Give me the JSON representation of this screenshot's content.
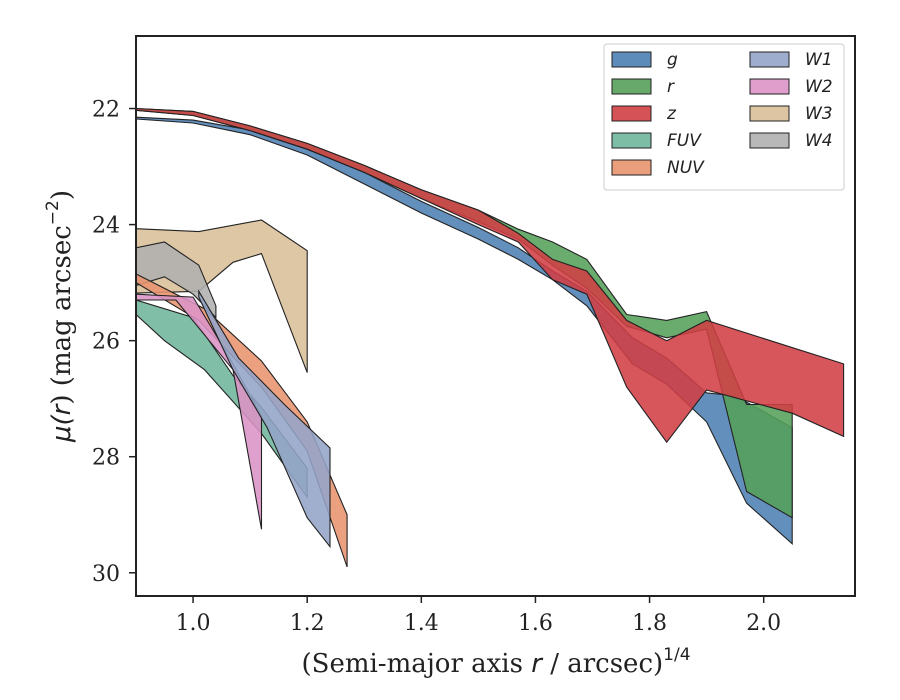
{
  "chart_data": {
    "type": "area",
    "xlabel_main": "(Semi-major axis ",
    "xlabel_var": "r",
    "xlabel_rest": " / arcsec)",
    "xlabel_sup": "1/4",
    "ylabel_main": "μ(",
    "ylabel_var": "r",
    "ylabel_rest": ") (mag arcsec",
    "ylabel_sup": "−2",
    "ylabel_end": ")",
    "xlim": [
      0.9,
      2.16
    ],
    "ylim": [
      30.4,
      20.75
    ],
    "y_inverted": true,
    "xticks": [
      1.0,
      1.2,
      1.4,
      1.6,
      1.8,
      2.0
    ],
    "xtick_labels": [
      "1.0",
      "1.2",
      "1.4",
      "1.6",
      "1.8",
      "2.0"
    ],
    "yticks": [
      22,
      24,
      26,
      28,
      30
    ],
    "ytick_labels": [
      "22",
      "24",
      "26",
      "28",
      "30"
    ],
    "grid": false,
    "legend_placement": "top-right",
    "legend_columns": 2,
    "series": [
      {
        "name": "W3",
        "color": "#d9bf99",
        "upper": [
          [
            0.9,
            24.07
          ],
          [
            1.01,
            24.12
          ],
          [
            1.12,
            23.92
          ],
          [
            1.2,
            24.45
          ]
        ],
        "lower": [
          [
            0.9,
            25.18
          ],
          [
            1.01,
            25.15
          ],
          [
            1.07,
            24.65
          ],
          [
            1.12,
            24.5
          ],
          [
            1.2,
            26.55
          ]
        ]
      },
      {
        "name": "W4",
        "color": "#b0b0b0",
        "upper": [
          [
            0.9,
            24.4
          ],
          [
            0.95,
            24.3
          ],
          [
            1.01,
            24.7
          ],
          [
            1.04,
            25.4
          ]
        ],
        "lower": [
          [
            0.9,
            25.05
          ],
          [
            0.95,
            24.9
          ],
          [
            1.0,
            25.2
          ],
          [
            1.04,
            25.6
          ]
        ]
      },
      {
        "name": "FUV",
        "color": "#6fb59b",
        "upper": [
          [
            0.9,
            25.3
          ],
          [
            1.0,
            25.6
          ],
          [
            1.07,
            26.6
          ],
          [
            1.12,
            27.15
          ],
          [
            1.2,
            28.2
          ]
        ],
        "lower": [
          [
            0.9,
            25.55
          ],
          [
            0.95,
            26.0
          ],
          [
            1.02,
            26.5
          ],
          [
            1.12,
            27.6
          ],
          [
            1.2,
            28.7
          ]
        ]
      },
      {
        "name": "NUV",
        "color": "#e8946e",
        "upper": [
          [
            0.9,
            24.85
          ],
          [
            1.02,
            25.45
          ],
          [
            1.12,
            26.35
          ],
          [
            1.2,
            27.4
          ],
          [
            1.27,
            29.0
          ]
        ],
        "lower": [
          [
            0.9,
            25.0
          ],
          [
            1.01,
            25.65
          ],
          [
            1.12,
            26.8
          ],
          [
            1.2,
            27.9
          ],
          [
            1.27,
            29.9
          ]
        ]
      },
      {
        "name": "W2",
        "color": "#dc93c6",
        "upper": [
          [
            0.9,
            25.2
          ],
          [
            1.0,
            25.25
          ],
          [
            1.04,
            25.9
          ],
          [
            1.07,
            26.4
          ],
          [
            1.12,
            27.3
          ]
        ],
        "lower": [
          [
            0.9,
            25.3
          ],
          [
            0.97,
            25.3
          ],
          [
            1.07,
            26.5
          ],
          [
            1.12,
            29.25
          ]
        ]
      },
      {
        "name": "W1",
        "color": "#94a4c8",
        "upper": [
          [
            1.01,
            25.15
          ],
          [
            1.08,
            26.3
          ],
          [
            1.16,
            27.1
          ],
          [
            1.24,
            27.85
          ]
        ],
        "lower": [
          [
            1.01,
            25.25
          ],
          [
            1.07,
            26.5
          ],
          [
            1.13,
            27.5
          ],
          [
            1.2,
            29.05
          ],
          [
            1.24,
            29.55
          ]
        ]
      },
      {
        "name": "g",
        "color": "#4c7fb3",
        "upper": [
          [
            0.9,
            22.15
          ],
          [
            1.0,
            22.2
          ],
          [
            1.1,
            22.37
          ],
          [
            1.2,
            22.7
          ],
          [
            1.3,
            23.1
          ],
          [
            1.4,
            23.6
          ],
          [
            1.5,
            24.05
          ],
          [
            1.57,
            24.4
          ],
          [
            1.63,
            24.8
          ],
          [
            1.69,
            25.15
          ],
          [
            1.77,
            25.95
          ],
          [
            1.83,
            26.3
          ],
          [
            1.9,
            26.9
          ],
          [
            1.95,
            26.95
          ],
          [
            2.05,
            27.5
          ]
        ],
        "lower": [
          [
            0.9,
            22.18
          ],
          [
            1.0,
            22.25
          ],
          [
            1.1,
            22.45
          ],
          [
            1.2,
            22.8
          ],
          [
            1.3,
            23.3
          ],
          [
            1.4,
            23.8
          ],
          [
            1.5,
            24.25
          ],
          [
            1.57,
            24.6
          ],
          [
            1.63,
            24.95
          ],
          [
            1.69,
            25.4
          ],
          [
            1.77,
            26.4
          ],
          [
            1.83,
            26.75
          ],
          [
            1.9,
            27.4
          ],
          [
            1.97,
            28.8
          ],
          [
            2.05,
            29.5
          ]
        ]
      },
      {
        "name": "r",
        "color": "#55a05a",
        "upper": [
          [
            0.9,
            22.0
          ],
          [
            1.0,
            22.05
          ],
          [
            1.1,
            22.3
          ],
          [
            1.2,
            22.6
          ],
          [
            1.3,
            22.98
          ],
          [
            1.4,
            23.4
          ],
          [
            1.5,
            23.75
          ],
          [
            1.57,
            24.08
          ],
          [
            1.63,
            24.3
          ],
          [
            1.69,
            24.6
          ],
          [
            1.76,
            25.55
          ],
          [
            1.83,
            25.65
          ],
          [
            1.9,
            25.5
          ],
          [
            1.97,
            27.1
          ],
          [
            2.05,
            27.1
          ]
        ],
        "lower": [
          [
            0.9,
            22.03
          ],
          [
            1.0,
            22.12
          ],
          [
            1.1,
            22.38
          ],
          [
            1.2,
            22.7
          ],
          [
            1.3,
            23.1
          ],
          [
            1.4,
            23.55
          ],
          [
            1.5,
            23.95
          ],
          [
            1.57,
            24.25
          ],
          [
            1.63,
            24.7
          ],
          [
            1.69,
            25.1
          ],
          [
            1.76,
            25.75
          ],
          [
            1.83,
            25.95
          ],
          [
            1.9,
            25.8
          ],
          [
            1.97,
            28.6
          ],
          [
            2.05,
            29.05
          ]
        ]
      },
      {
        "name": "z",
        "color": "#d03f44",
        "upper": [
          [
            0.9,
            22.0
          ],
          [
            1.0,
            22.05
          ],
          [
            1.1,
            22.3
          ],
          [
            1.2,
            22.6
          ],
          [
            1.3,
            22.98
          ],
          [
            1.4,
            23.4
          ],
          [
            1.5,
            23.75
          ],
          [
            1.57,
            24.15
          ],
          [
            1.63,
            24.6
          ],
          [
            1.69,
            24.8
          ],
          [
            1.76,
            25.65
          ],
          [
            1.83,
            26.0
          ],
          [
            1.9,
            25.65
          ],
          [
            2.14,
            26.4
          ]
        ],
        "lower": [
          [
            0.9,
            22.03
          ],
          [
            1.0,
            22.12
          ],
          [
            1.1,
            22.38
          ],
          [
            1.2,
            22.7
          ],
          [
            1.3,
            23.1
          ],
          [
            1.4,
            23.55
          ],
          [
            1.5,
            24.0
          ],
          [
            1.57,
            24.3
          ],
          [
            1.63,
            24.95
          ],
          [
            1.69,
            25.2
          ],
          [
            1.76,
            26.8
          ],
          [
            1.83,
            27.75
          ],
          [
            1.9,
            26.85
          ],
          [
            2.05,
            27.25
          ],
          [
            2.14,
            27.65
          ]
        ]
      }
    ],
    "legend": [
      {
        "name": "g",
        "color": "#4c7fb3"
      },
      {
        "name": "r",
        "color": "#55a05a"
      },
      {
        "name": "z",
        "color": "#d03f44"
      },
      {
        "name": "FUV",
        "color": "#6fb59b"
      },
      {
        "name": "NUV",
        "color": "#e8946e"
      },
      {
        "name": "W1",
        "color": "#94a4c8"
      },
      {
        "name": "W2",
        "color": "#dc93c6"
      },
      {
        "name": "W3",
        "color": "#d9bf99"
      },
      {
        "name": "W4",
        "color": "#b0b0b0"
      }
    ]
  }
}
